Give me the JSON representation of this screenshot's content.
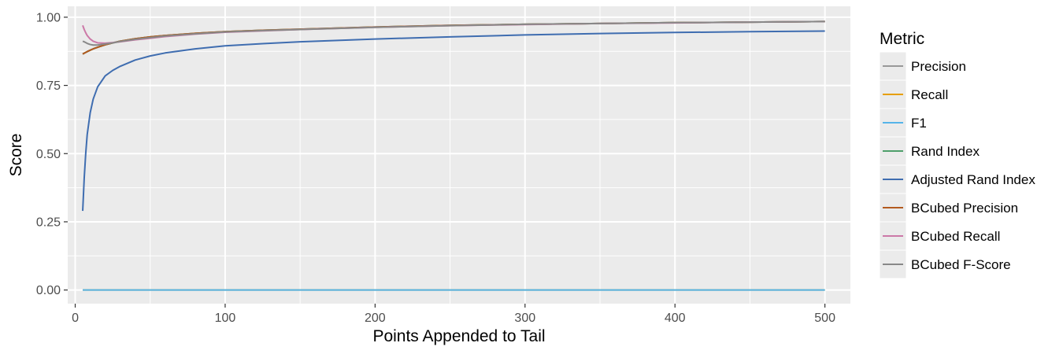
{
  "chart_data": {
    "type": "line",
    "xlabel": "Points Appended to Tail",
    "ylabel": "Score",
    "xlim": [
      -5,
      517
    ],
    "ylim": [
      -0.05,
      1.04
    ],
    "x_ticks": [
      0,
      100,
      200,
      300,
      400,
      500
    ],
    "x_tick_labels": [
      "0",
      "100",
      "200",
      "300",
      "400",
      "500"
    ],
    "y_ticks": [
      0,
      0.25,
      0.5,
      0.75,
      1.0
    ],
    "y_tick_labels": [
      "0.00",
      "0.25",
      "0.50",
      "0.75",
      "1.00"
    ],
    "grid": true,
    "background": "#ebebeb",
    "legend": {
      "title": "Metric",
      "position": "right"
    },
    "x": [
      5,
      6,
      7,
      8,
      10,
      12,
      15,
      20,
      25,
      30,
      40,
      50,
      60,
      80,
      100,
      125,
      150,
      200,
      250,
      300,
      350,
      400,
      450,
      500
    ],
    "series": [
      {
        "name": "Precision",
        "color": "#999999",
        "values": [
          0.865,
          0.868,
          0.871,
          0.874,
          0.879,
          0.884,
          0.89,
          0.899,
          0.906,
          0.912,
          0.921,
          0.928,
          0.933,
          0.941,
          0.947,
          0.952,
          0.956,
          0.964,
          0.97,
          0.974,
          0.977,
          0.98,
          0.982,
          0.984
        ]
      },
      {
        "name": "Recall",
        "color": "#E69F00",
        "values": [
          0.0,
          0.0,
          0.0,
          0.0,
          0.0,
          0.0,
          0.0,
          0.0,
          0.0,
          0.0,
          0.0,
          0.0,
          0.0,
          0.0,
          0.0,
          0.0,
          0.0,
          0.0,
          0.0,
          0.0,
          0.0,
          0.0,
          0.0,
          0.0
        ]
      },
      {
        "name": "F1",
        "color": "#56B4E9",
        "values": [
          0.0,
          0.0,
          0.0,
          0.0,
          0.0,
          0.0,
          0.0,
          0.0,
          0.0,
          0.0,
          0.0,
          0.0,
          0.0,
          0.0,
          0.0,
          0.0,
          0.0,
          0.0,
          0.0,
          0.0,
          0.0,
          0.0,
          0.0,
          0.0
        ]
      },
      {
        "name": "Rand Index",
        "color": "#4E9F6B",
        "values": [
          0.865,
          0.868,
          0.871,
          0.874,
          0.879,
          0.884,
          0.89,
          0.899,
          0.906,
          0.912,
          0.921,
          0.928,
          0.933,
          0.941,
          0.947,
          0.952,
          0.956,
          0.964,
          0.97,
          0.974,
          0.977,
          0.98,
          0.982,
          0.984
        ]
      },
      {
        "name": "Adjusted Rand Index",
        "color": "#3F6DB0",
        "values": [
          0.29,
          0.41,
          0.5,
          0.57,
          0.65,
          0.7,
          0.745,
          0.785,
          0.805,
          0.82,
          0.843,
          0.858,
          0.869,
          0.884,
          0.895,
          0.903,
          0.91,
          0.92,
          0.928,
          0.935,
          0.94,
          0.944,
          0.947,
          0.949
        ]
      },
      {
        "name": "BCubed Precision",
        "color": "#B35A1F",
        "values": [
          0.865,
          0.868,
          0.871,
          0.874,
          0.879,
          0.884,
          0.89,
          0.899,
          0.906,
          0.912,
          0.921,
          0.928,
          0.933,
          0.941,
          0.947,
          0.952,
          0.956,
          0.964,
          0.97,
          0.974,
          0.977,
          0.98,
          0.982,
          0.984
        ]
      },
      {
        "name": "BCubed Recall",
        "color": "#CC79A7",
        "values": [
          0.97,
          0.955,
          0.943,
          0.933,
          0.92,
          0.912,
          0.906,
          0.905,
          0.907,
          0.91,
          0.917,
          0.923,
          0.929,
          0.938,
          0.945,
          0.95,
          0.955,
          0.963,
          0.969,
          0.973,
          0.977,
          0.979,
          0.982,
          0.984
        ]
      },
      {
        "name": "BCubed F-Score",
        "color": "#888888",
        "values": [
          0.912,
          0.91,
          0.907,
          0.904,
          0.9,
          0.898,
          0.898,
          0.902,
          0.906,
          0.911,
          0.919,
          0.925,
          0.931,
          0.939,
          0.946,
          0.951,
          0.955,
          0.963,
          0.969,
          0.974,
          0.977,
          0.98,
          0.982,
          0.984
        ]
      }
    ]
  }
}
